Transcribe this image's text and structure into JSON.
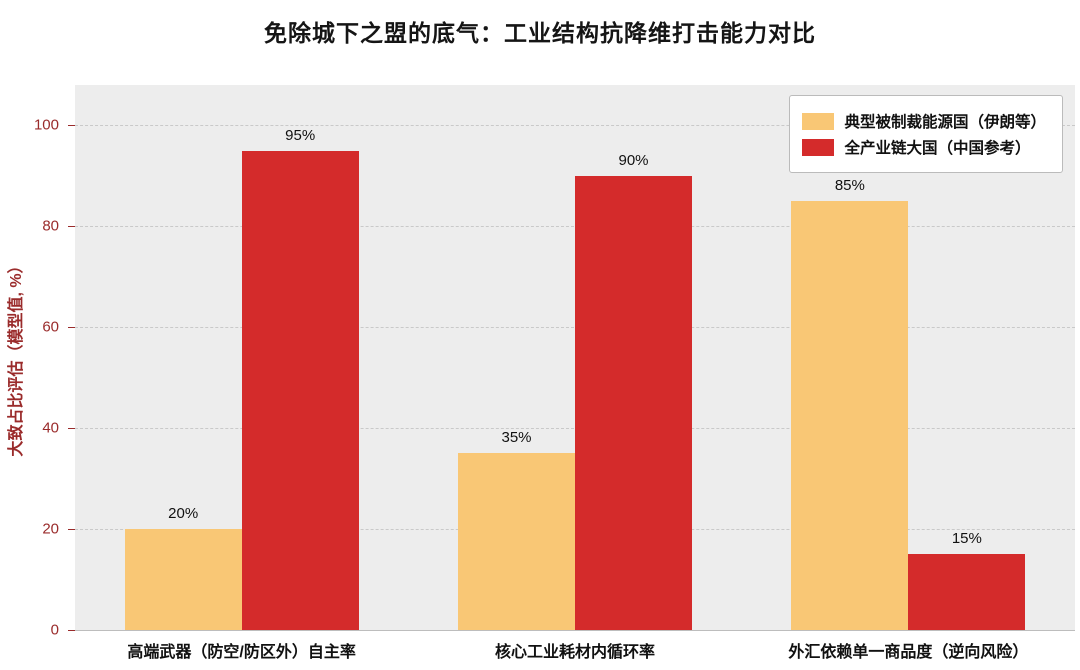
{
  "chart_data": {
    "type": "bar",
    "title": "免除城下之盟的底气：工业结构抗降维打击能力对比",
    "ylabel": "大致占比评估（模型值, %）",
    "xlabel": "",
    "categories": [
      "高端武器（防空/防区外）自主率",
      "核心工业耗材内循环率",
      "外汇依赖单一商品度（逆向风险）"
    ],
    "series": [
      {
        "name": "典型被制裁能源国（伊朗等）",
        "color": "#F9C775",
        "values": [
          20,
          35,
          85
        ]
      },
      {
        "name": "全产业链大国（中国参考）",
        "color": "#D42B2B",
        "values": [
          95,
          90,
          15
        ]
      }
    ],
    "value_label_suffix": "%",
    "value_labels": [
      "20%",
      "35%",
      "85%",
      "95%",
      "90%",
      "15%"
    ],
    "yticks": [
      0,
      20,
      40,
      60,
      80,
      100
    ],
    "ylim": [
      0,
      108
    ],
    "grid": "horizontal-dashed",
    "legend_position": "upper-right",
    "plot_background": "#ededed",
    "axis_text_color": "#9a2b2b"
  }
}
